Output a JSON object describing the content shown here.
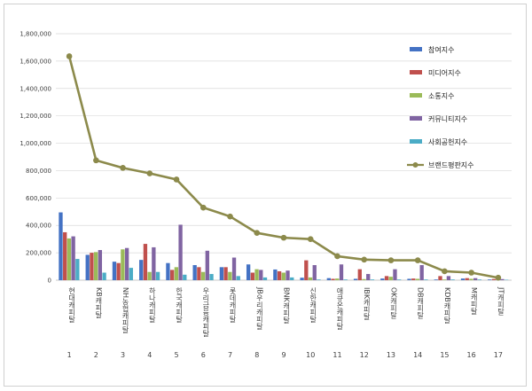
{
  "chart_data": {
    "type": "bar",
    "title": "",
    "xlabel": "",
    "ylabel": "",
    "ylim": [
      0,
      1800000
    ],
    "yticks": [
      "0",
      "200,000",
      "400,000",
      "600,000",
      "800,000",
      "1,000,000",
      "1,200,000",
      "1,400,000",
      "1,600,000",
      "1,800,000"
    ],
    "grid": true,
    "legend_position": "right",
    "ranks": [
      "1",
      "2",
      "3",
      "4",
      "5",
      "6",
      "7",
      "8",
      "9",
      "10",
      "11",
      "12",
      "13",
      "14",
      "15",
      "16",
      "17"
    ],
    "categories": [
      "현대캐피탈",
      "KB캐피탈",
      "NH농협캐피탈",
      "하나캐피탈",
      "한국캐피탈",
      "우리금융캐피탈",
      "롯데캐피탈",
      "JB우리캐피탈",
      "BNK캐피탈",
      "신한캐피탈",
      "애큐온캐피탈",
      "IBK캐피탈",
      "OK캐피탈",
      "DB캐피탈",
      "KDB캐피탈",
      "M캐피탈",
      "JT캐피탈"
    ],
    "series": [
      {
        "name": "참여지수",
        "color": "#4472c4",
        "values": [
          495000,
          185000,
          135000,
          148000,
          125000,
          110000,
          95000,
          115000,
          78000,
          18000,
          15000,
          10000,
          12000,
          10000,
          5000,
          12000,
          5000
        ]
      },
      {
        "name": "미디어지수",
        "color": "#c0504d",
        "values": [
          350000,
          200000,
          125000,
          265000,
          75000,
          95000,
          95000,
          55000,
          65000,
          145000,
          10000,
          80000,
          30000,
          12000,
          30000,
          15000,
          8000
        ]
      },
      {
        "name": "소통지수",
        "color": "#9bbb59",
        "values": [
          305000,
          205000,
          225000,
          60000,
          95000,
          60000,
          60000,
          80000,
          55000,
          20000,
          12000,
          8000,
          25000,
          10000,
          5000,
          10000,
          5000
        ]
      },
      {
        "name": "커뮤니티지수",
        "color": "#8064a2",
        "values": [
          320000,
          220000,
          235000,
          240000,
          405000,
          215000,
          165000,
          75000,
          70000,
          110000,
          115000,
          45000,
          80000,
          110000,
          30000,
          15000,
          8000
        ]
      },
      {
        "name": "사회공헌지수",
        "color": "#4bacc6",
        "values": [
          155000,
          55000,
          90000,
          60000,
          40000,
          45000,
          30000,
          20000,
          20000,
          5000,
          5000,
          5000,
          5000,
          5000,
          5000,
          5000,
          3000
        ]
      }
    ],
    "line": {
      "name": "브랜드평판지수",
      "color": "#8c8a4b",
      "values": [
        1635000,
        875000,
        820000,
        780000,
        735000,
        530000,
        465000,
        345000,
        310000,
        300000,
        175000,
        150000,
        145000,
        145000,
        65000,
        55000,
        18000
      ]
    }
  }
}
